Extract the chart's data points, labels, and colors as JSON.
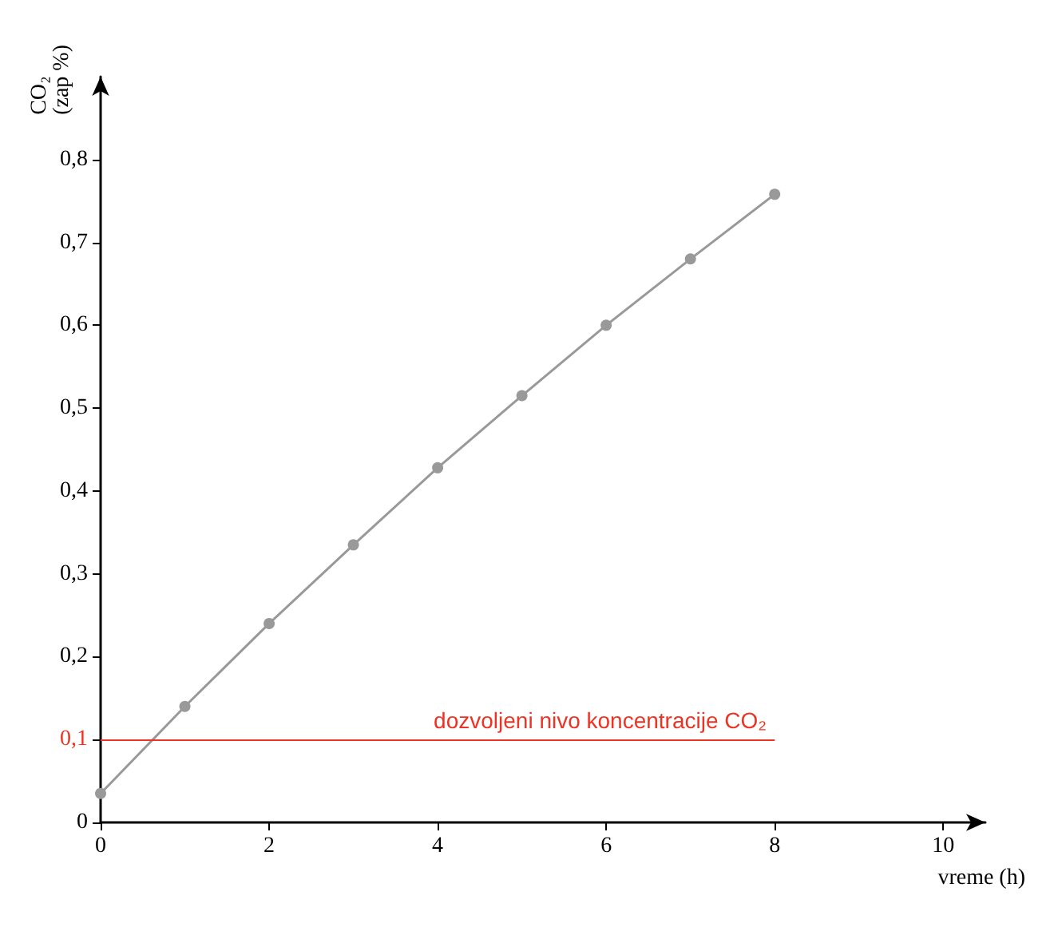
{
  "chart_data": {
    "type": "line",
    "ylabel": "CO₂ (zap %)",
    "xlabel": "vreme (h)",
    "x": [
      0,
      1,
      2,
      3,
      4,
      5,
      6,
      7,
      8
    ],
    "series": [
      {
        "color": "#999999",
        "values": [
          0.035,
          0.14,
          0.24,
          0.335,
          0.428,
          0.515,
          0.6,
          0.68,
          0.758
        ]
      }
    ],
    "xlim": [
      0,
      10.5
    ],
    "xticks": [
      0,
      2,
      4,
      6,
      8,
      10
    ],
    "ylim": [
      0,
      0.9
    ],
    "yticks": [
      0,
      {
        "value": 0.1,
        "label": "0,1"
      },
      {
        "value": 0.2,
        "label": "0,2"
      },
      {
        "value": 0.3,
        "label": "0,3"
      },
      {
        "value": 0.4,
        "label": "0,4"
      },
      {
        "value": 0.5,
        "label": "0,5"
      },
      {
        "value": 0.6,
        "label": "0,6"
      },
      {
        "value": 0.7,
        "label": "0,7"
      },
      {
        "value": 0.8,
        "label": "0,8"
      }
    ],
    "ref_lines": [
      {
        "axis": "y",
        "value": 0.1,
        "label": "dozvoljeni nivo koncentracije CO₂",
        "color": "#ee3322"
      }
    ],
    "marker": "circle",
    "line_style": "solid"
  }
}
